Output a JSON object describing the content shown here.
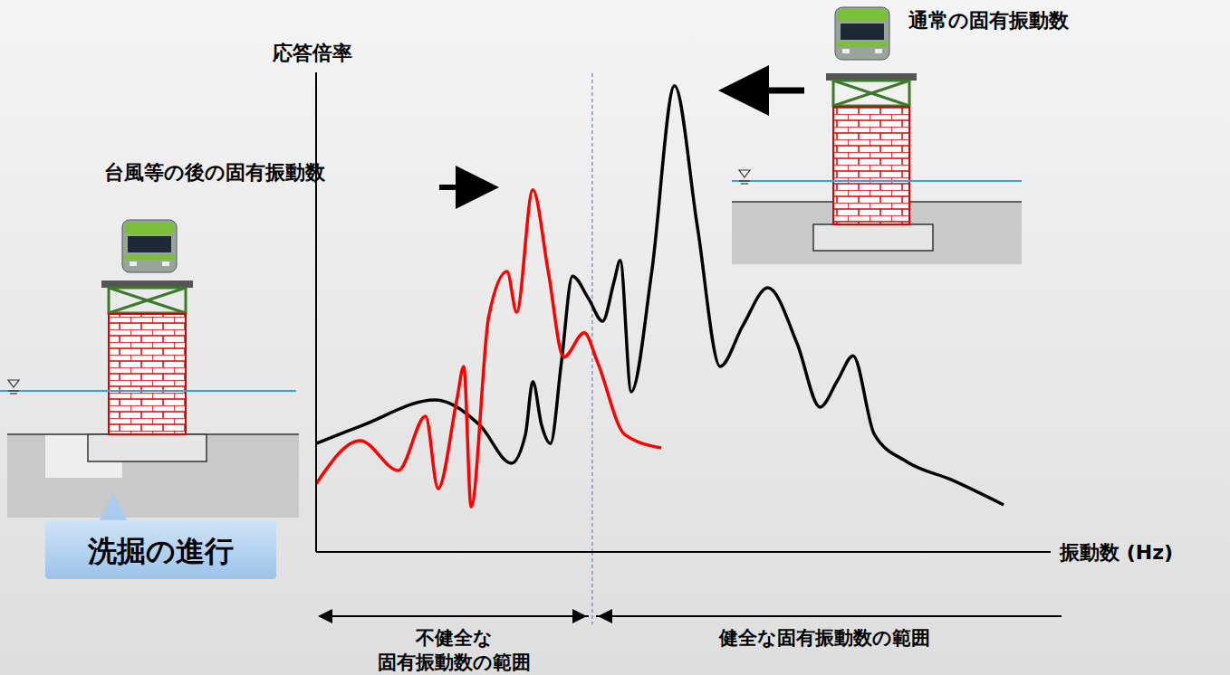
{
  "chart_data": {
    "type": "line",
    "x_label": "振動数 (Hz)",
    "y_label": "応答倍率",
    "xlim": [
      0,
      100
    ],
    "ylim": [
      0,
      100
    ],
    "tick_labels": false,
    "threshold_x": 37.6,
    "scour_label": "洗掘の進行",
    "range_labels": {
      "unhealthy": [
        "不健全な",
        "固有振動数の範囲"
      ],
      "healthy": "健全な固有振動数の範囲"
    },
    "series": [
      {
        "name": "通常の固有振動数",
        "color": "#000000",
        "x": [
          0,
          6.3,
          16.2,
          22.3,
          26.6,
          28.5,
          29.5,
          30.7,
          31.9,
          33.4,
          34.9,
          37.1,
          39.0,
          40.6,
          41.4,
          42.9,
          45.7,
          48.8,
          51.9,
          55.0,
          58.1,
          61.5,
          65.5,
          68.6,
          71.0,
          73.1,
          76.0,
          80.3,
          86.4,
          93.6
        ],
        "values": [
          22.6,
          26.4,
          31.7,
          26.4,
          18.5,
          24.5,
          35.5,
          26.4,
          22.6,
          39.6,
          57.5,
          52.8,
          48.1,
          56.6,
          60.8,
          33.4,
          58.5,
          97.2,
          67.9,
          38.7,
          47.2,
          55.1,
          43.4,
          30.2,
          35.8,
          40.9,
          24.5,
          18.9,
          15.1,
          9.8
        ]
      },
      {
        "name": "台風等の後の固有振動数",
        "color": "#ff0000",
        "x": [
          0,
          6.0,
          11.2,
          14.9,
          16.6,
          19.2,
          20.1,
          21.1,
          23.5,
          26.0,
          27.3,
          29.5,
          31.6,
          33.7,
          36.5,
          38.3,
          42.0,
          47.0
        ],
        "values": [
          14.2,
          23.2,
          17.0,
          28.3,
          13.2,
          32.1,
          38.7,
          9.4,
          49.1,
          58.5,
          50.0,
          75.5,
          58.5,
          40.6,
          45.7,
          39.6,
          24.5,
          21.7
        ]
      }
    ]
  }
}
